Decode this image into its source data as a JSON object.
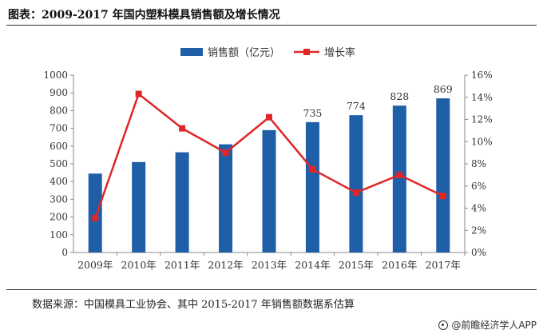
{
  "title": "图表：2009-2017 年国内塑料模具销售额及增长情况",
  "source": "数据来源：中国模具工业协会、其中 2015-2017 年销售额数据系估算",
  "watermark": "@前瞻经济学人APP",
  "colors": {
    "bar": "#1f5fa8",
    "line": "#e02626",
    "axis": "#888888",
    "text": "#333333"
  },
  "chart_data": {
    "type": "bar",
    "categories": [
      "2009年",
      "2010年",
      "2011年",
      "2012年",
      "2013年",
      "2014年",
      "2015年",
      "2016年",
      "2017年"
    ],
    "series": [
      {
        "name": "销售额（亿元）",
        "type": "bar",
        "axis": "left",
        "values": [
          445,
          510,
          565,
          610,
          690,
          735,
          774,
          828,
          869
        ],
        "labels": [
          "",
          "",
          "",
          "",
          "",
          "735",
          "774",
          "828",
          "869"
        ]
      },
      {
        "name": "增长率",
        "type": "line",
        "axis": "right",
        "values": [
          0.031,
          0.143,
          0.112,
          0.09,
          0.122,
          0.075,
          0.054,
          0.07,
          0.051
        ]
      }
    ],
    "yleft": {
      "ylim": [
        0,
        1000
      ],
      "ticks": [
        "0",
        "100",
        "200",
        "300",
        "400",
        "500",
        "600",
        "700",
        "800",
        "900",
        "1000"
      ]
    },
    "yright": {
      "ylim": [
        0,
        0.16
      ],
      "ticks": [
        "0%",
        "2%",
        "4%",
        "6%",
        "8%",
        "10%",
        "12%",
        "14%",
        "16%"
      ]
    },
    "legend_position": "top"
  }
}
